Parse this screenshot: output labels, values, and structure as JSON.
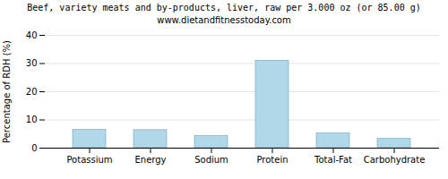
{
  "chart_data": {
    "type": "bar",
    "title": "Beef, variety meats and by-products, liver, raw per 3.000 oz (or 85.00 g)",
    "subtitle": "www.dietandfitnesstoday.com",
    "categories": [
      "Potassium",
      "Energy",
      "Sodium",
      "Protein",
      "Total-Fat",
      "Carbohydrate"
    ],
    "values": [
      6.5,
      6.4,
      4.3,
      31.0,
      5.2,
      3.3
    ],
    "color": "#b0d8e8",
    "ylabel": "Percentage of RDH (%)",
    "ylim": [
      0,
      40
    ],
    "yticks": [
      0,
      10,
      20,
      30,
      40
    ],
    "grid": true
  }
}
